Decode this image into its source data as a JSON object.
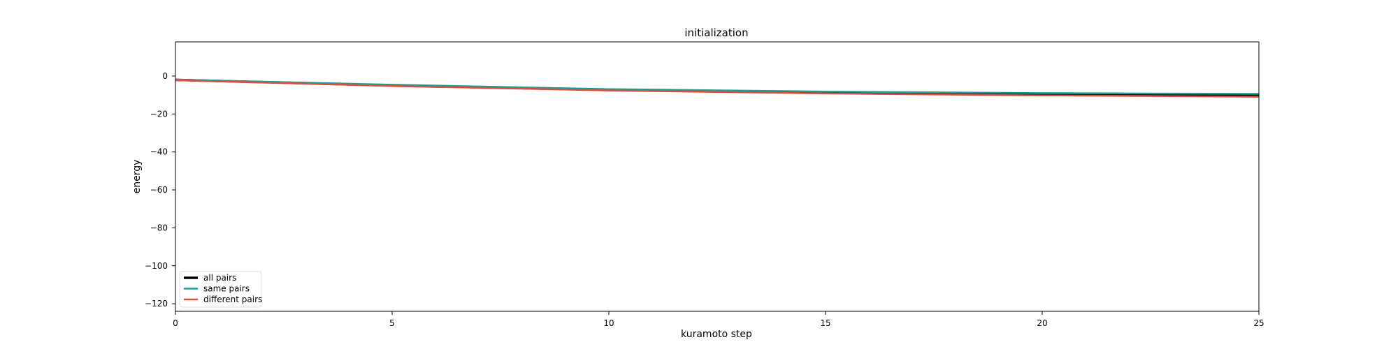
{
  "chart_data": {
    "type": "line",
    "title": "initialization",
    "xlabel": "kuramoto step",
    "ylabel": "energy",
    "xlim": [
      0,
      25
    ],
    "ylim": [
      -124,
      18
    ],
    "xticks": [
      0,
      5,
      10,
      15,
      20,
      25
    ],
    "yticks": [
      0,
      -20,
      -40,
      -60,
      -80,
      -100,
      -120
    ],
    "grid": false,
    "legend_position": "lower-left",
    "x": [
      0,
      5,
      10,
      15,
      20,
      25
    ],
    "series": [
      {
        "name": "all pairs",
        "color": "#000000",
        "values": [
          -2.0,
          -5.0,
          -7.3,
          -8.8,
          -9.7,
          -10.2
        ]
      },
      {
        "name": "same pairs",
        "color": "#1a9e96",
        "values": [
          -1.9,
          -4.6,
          -6.9,
          -8.2,
          -9.0,
          -9.4
        ]
      },
      {
        "name": "different pairs",
        "color": "#d9503e",
        "values": [
          -2.2,
          -5.3,
          -7.6,
          -9.2,
          -10.2,
          -10.9
        ]
      }
    ]
  }
}
